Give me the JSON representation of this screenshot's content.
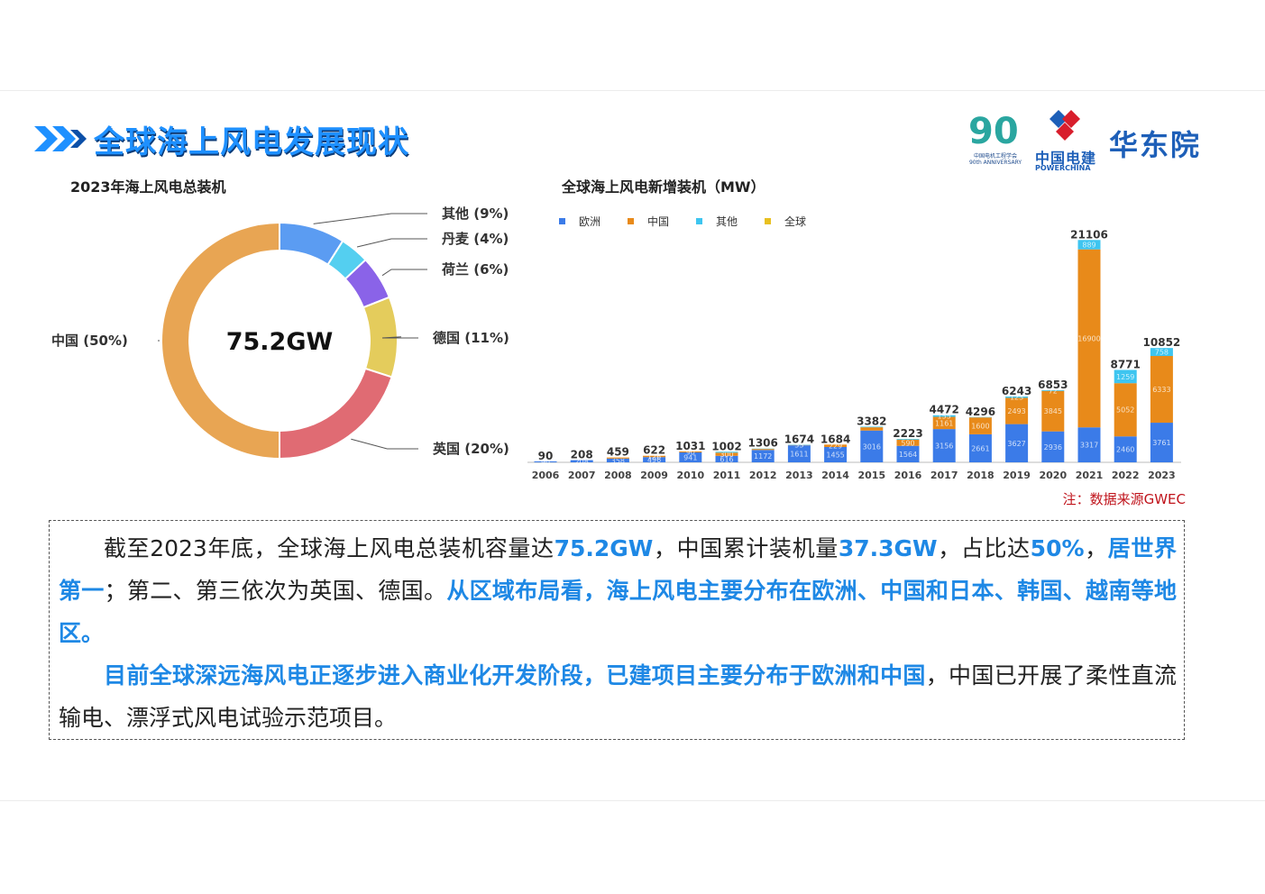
{
  "page_title": "全球海上风电发展现状",
  "logos": {
    "anniversary_number": "90",
    "anniversary_text": "中国电机工程学会",
    "anniversary_en": "90th ANNIVERSARY",
    "powerchina_cn": "中国电建",
    "powerchina_en": "POWERCHINA",
    "institute": "华东院"
  },
  "colors": {
    "title": "#1e90ff",
    "accent": "#1e88e5",
    "note": "#c0141c",
    "europe": "#3b7be8",
    "china": "#e88a1a",
    "other": "#3ec5f0",
    "global": "#e8c020"
  },
  "chart_data": [
    {
      "type": "pie",
      "title": "2023年海上风电总装机",
      "center_label": "75.2GW",
      "slices": [
        {
          "label": "其他 (9%)",
          "value": 9,
          "color": "#5b9cf2"
        },
        {
          "label": "丹麦 (4%)",
          "value": 4,
          "color": "#54cff0"
        },
        {
          "label": "荷兰 (6%)",
          "value": 6,
          "color": "#8a63e8"
        },
        {
          "label": "德国 (11%)",
          "value": 11,
          "color": "#e4cc5c"
        },
        {
          "label": "英国 (20%)",
          "value": 20,
          "color": "#e06b73"
        },
        {
          "label": "中国 (50%)",
          "value": 50,
          "color": "#e8a553"
        }
      ]
    },
    {
      "type": "bar",
      "stacked": true,
      "title": "全球海上风电新增装机（MW）",
      "legend": [
        "欧洲",
        "中国",
        "其他",
        "全球"
      ],
      "legend_position": "top-left",
      "categories": [
        "2006",
        "2007",
        "2008",
        "2009",
        "2010",
        "2011",
        "2012",
        "2013",
        "2014",
        "2015",
        "2016",
        "2017",
        "2018",
        "2019",
        "2020",
        "2021",
        "2022",
        "2023"
      ],
      "totals": [
        90,
        208,
        459,
        622,
        1031,
        1002,
        1306,
        1674,
        1684,
        3382,
        2223,
        4472,
        4296,
        6243,
        6853,
        21106,
        8771,
        10852
      ],
      "series": [
        {
          "name": "欧洲",
          "values": [
            90,
            208,
            358,
            496,
            941,
            616,
            1172,
            1611,
            1455,
            3016,
            1564,
            3156,
            2661,
            3627,
            2936,
            3317,
            2460,
            3761
          ],
          "labels": [
            "90",
            "208",
            "358",
            "496",
            "941",
            "616",
            "1172",
            "1611",
            "1455",
            "3016",
            "1564",
            "3156",
            "2661",
            "3627",
            "2936",
            "3317",
            "2460",
            "3761"
          ]
        },
        {
          "name": "中国",
          "values": [
            0,
            0,
            101,
            126,
            90,
            300,
            100,
            30,
            229,
            310,
            590,
            1161,
            1600,
            2493,
            3845,
            16900,
            5052,
            6333
          ],
          "labels": [
            "",
            "",
            "",
            "126",
            "90",
            "300",
            "",
            "",
            "229",
            "",
            "590",
            "1161",
            "1600",
            "2493",
            "3845",
            "16900",
            "5052",
            "6333"
          ]
        },
        {
          "name": "其他",
          "values": [
            0,
            0,
            0,
            0,
            0,
            86,
            34,
            33,
            0,
            56,
            69,
            155,
            35,
            123,
            72,
            889,
            1259,
            758
          ],
          "labels": [
            "",
            "",
            "",
            "",
            "",
            "",
            "",
            "33",
            "",
            "",
            "",
            "155",
            "",
            "123",
            "72",
            "889",
            "1259",
            "758"
          ]
        }
      ],
      "ylim": [
        0,
        22500
      ]
    }
  ],
  "source_note": "注：数据来源GWEC",
  "text": {
    "p1_a": "截至2023年底，全球海上风电总装机容量达",
    "p1_b": "75.2GW",
    "p1_c": "，中国累计装机量",
    "p1_d": "37.3GW",
    "p1_e": "，占比达",
    "p1_f": "50%",
    "p1_g": "，",
    "p1_h": "居世界第一",
    "p1_i": "；第二、第三依次为英国、德国。",
    "p1_j": "从区域布局看，海上风电主要分布在欧洲、中国和日本、韩国、越南等地区。",
    "p2_a": "目前全球深远海风电正逐步进入商业化开发阶段，已建项目主要分布于欧洲和中国",
    "p2_b": "，中国已开展了柔性直流输电、漂浮式风电试验示范项目。"
  }
}
